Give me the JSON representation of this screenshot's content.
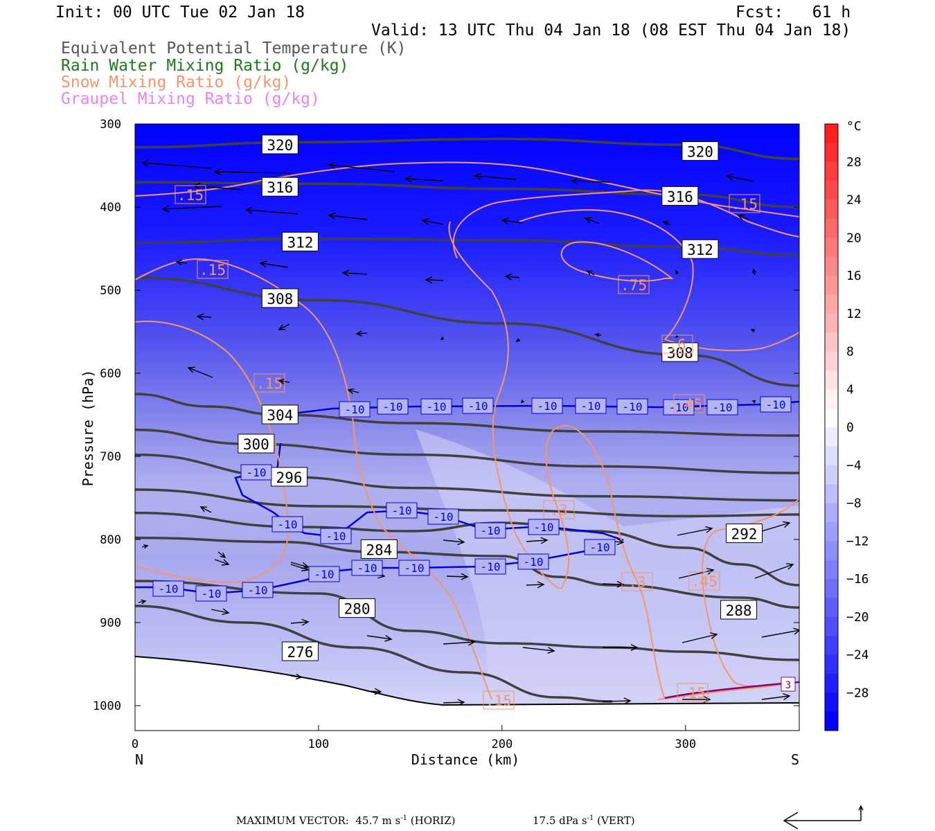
{
  "header": {
    "init": "Init: 00 UTC Tue 02 Jan 18",
    "fcst": "Fcst:   61 h",
    "valid": "Valid: 13 UTC Thu 04 Jan 18 (08 EST Thu 04 Jan 18)"
  },
  "legend": [
    {
      "label": "Equivalent Potential Temperature (K)",
      "color": "#555555"
    },
    {
      "label": "Rain Water Mixing Ratio (g/kg)",
      "color": "#1a7a1a"
    },
    {
      "label": "Snow Mixing Ratio (g/kg)",
      "color": "#f4956a"
    },
    {
      "label": "Graupel Mixing Ratio (g/kg)",
      "color": "#f080f0"
    }
  ],
  "chart_data": {
    "type": "cross-section",
    "xlabel": "Distance (km)",
    "ylabel": "Pressure (hPa)",
    "xlim": [
      0,
      362
    ],
    "ylim": [
      1030,
      300
    ],
    "x_ticks": [
      0,
      100,
      200,
      300
    ],
    "y_ticks": [
      300,
      400,
      500,
      600,
      700,
      800,
      900,
      1000
    ],
    "x_end_labels": {
      "left": "N",
      "right": "S"
    },
    "colorbar": {
      "unit": "°C",
      "ticks": [
        "28",
        "24",
        "20",
        "16",
        "12",
        "8",
        "4",
        "0",
        "−4",
        "−8",
        "−12",
        "−16",
        "−20",
        "−24",
        "−28"
      ],
      "tick_values": [
        28,
        24,
        20,
        16,
        12,
        8,
        4,
        0,
        -4,
        -8,
        -12,
        -16,
        -20,
        -24,
        -28
      ]
    },
    "theta_e_contours": [
      {
        "label": "320",
        "points": [
          [
            0,
            328
          ],
          [
            90,
            322
          ],
          [
            200,
            318
          ],
          [
            300,
            325
          ],
          [
            362,
            342
          ]
        ],
        "label_at": [
          [
            79,
            325
          ],
          [
            308,
            333
          ]
        ]
      },
      {
        "label": "316",
        "points": [
          [
            0,
            370
          ],
          [
            100,
            372
          ],
          [
            200,
            378
          ],
          [
            300,
            385
          ],
          [
            362,
            400
          ]
        ],
        "label_at": [
          [
            79,
            376
          ],
          [
            297,
            387
          ]
        ]
      },
      {
        "label": "312",
        "points": [
          [
            0,
            443
          ],
          [
            100,
            438
          ],
          [
            200,
            440
          ],
          [
            300,
            448
          ],
          [
            362,
            458
          ]
        ],
        "label_at": [
          [
            90,
            442
          ],
          [
            308,
            451
          ]
        ]
      },
      {
        "label": "308",
        "points": [
          [
            0,
            485
          ],
          [
            100,
            512
          ],
          [
            200,
            540
          ],
          [
            300,
            578
          ],
          [
            362,
            615
          ]
        ],
        "label_at": [
          [
            79,
            510
          ],
          [
            297,
            575
          ]
        ]
      },
      {
        "label": "304",
        "points": [
          [
            0,
            625
          ],
          [
            40,
            640
          ],
          [
            79,
            650
          ],
          [
            150,
            660
          ],
          [
            250,
            670
          ],
          [
            362,
            675
          ]
        ],
        "label_at": [
          [
            79,
            650
          ]
        ]
      },
      {
        "label": "300",
        "points": [
          [
            0,
            668
          ],
          [
            60,
            685
          ],
          [
            150,
            698
          ],
          [
            250,
            712
          ],
          [
            362,
            720
          ]
        ],
        "label_at": [
          [
            66,
            685
          ]
        ]
      },
      {
        "label": "296",
        "points": [
          [
            0,
            698
          ],
          [
            85,
            725
          ],
          [
            150,
            738
          ],
          [
            250,
            748
          ],
          [
            362,
            753
          ]
        ],
        "label_at": [
          [
            84,
            725
          ]
        ]
      },
      {
        "label": "292",
        "points": [
          [
            0,
            740
          ],
          [
            100,
            760
          ],
          [
            200,
            765
          ],
          [
            300,
            772
          ],
          [
            362,
            770
          ]
        ],
        "label_at": [
          [
            332,
            793
          ]
        ]
      },
      {
        "label": "284",
        "points": [
          [
            0,
            798
          ],
          [
            80,
            803
          ],
          [
            130,
            815
          ],
          [
            200,
            820
          ],
          [
            230,
            845
          ],
          [
            260,
            855
          ],
          [
            330,
            870
          ],
          [
            362,
            882
          ]
        ],
        "label_at": [
          [
            133,
            812
          ]
        ]
      },
      {
        "label": "288",
        "points": [
          [
            0,
            768
          ],
          [
            90,
            785
          ],
          [
            150,
            790
          ],
          [
            200,
            780
          ],
          [
            250,
            790
          ],
          [
            300,
            810
          ],
          [
            330,
            830
          ],
          [
            362,
            855
          ]
        ],
        "label_at": [
          [
            329,
            885
          ]
        ]
      },
      {
        "label": "280",
        "points": [
          [
            0,
            850
          ],
          [
            100,
            865
          ],
          [
            150,
            910
          ],
          [
            200,
            925
          ],
          [
            260,
            930
          ],
          [
            300,
            935
          ],
          [
            362,
            945
          ]
        ],
        "label_at": [
          [
            121,
            883
          ]
        ]
      },
      {
        "label": "276",
        "points": [
          [
            0,
            880
          ],
          [
            60,
            900
          ],
          [
            120,
            930
          ],
          [
            180,
            960
          ],
          [
            230,
            990
          ],
          [
            260,
            995
          ]
        ],
        "label_at": [
          [
            90,
            935
          ]
        ]
      }
    ],
    "temperature_minus10_labels": [
      "-10",
      "-10",
      "-10",
      "-10",
      "-10",
      "-10",
      "-10",
      "-10",
      "-10",
      "-10",
      "-10",
      "-10",
      "-10",
      "-10",
      "-10",
      "-10",
      "-10",
      "-10",
      "-10",
      "-10",
      "-10",
      "-10",
      "-10",
      "-10",
      "-10",
      "-10"
    ],
    "snow_labels": [
      ".15",
      ".15",
      ".15",
      ".15",
      ".75",
      ".6",
      ".45",
      ".3",
      ".3",
      ".45",
      ".15",
      ".15"
    ],
    "graupel_label": "3"
  },
  "footer": {
    "max_vector": "MAXIMUM VECTOR:  45.7 m s",
    "horiz": "(HORIZ)",
    "vert_val": "17.5 dPa s",
    "vert": "(VERT)",
    "sup": "-1"
  }
}
